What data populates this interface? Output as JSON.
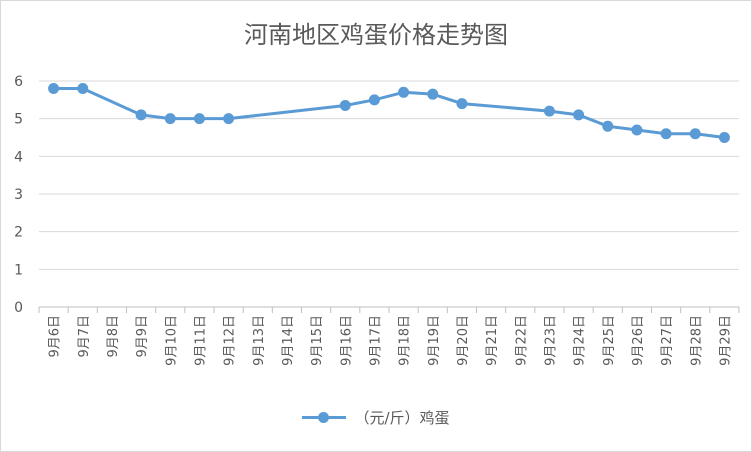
{
  "colors": {
    "series": "#5b9bd5",
    "grid": "#d9d9d9",
    "text": "#595959"
  },
  "chart_data": {
    "type": "line",
    "title": "河南地区鸡蛋价格走势图",
    "xlabel": "",
    "ylabel": "",
    "ylim": [
      0,
      6
    ],
    "yticks": [
      "0",
      "1",
      "2",
      "3",
      "4",
      "5",
      "6"
    ],
    "grid": "horizontal",
    "legend_position": "bottom",
    "categories": [
      "9月6日",
      "9月7日",
      "9月8日",
      "9月9日",
      "9月10日",
      "9月11日",
      "9月12日",
      "9月13日",
      "9月14日",
      "9月15日",
      "9月16日",
      "9月17日",
      "9月18日",
      "9月19日",
      "9月20日",
      "9月21日",
      "9月22日",
      "9月23日",
      "9月24日",
      "9月25日",
      "9月26日",
      "9月27日",
      "9月28日",
      "9月29日"
    ],
    "series": [
      {
        "name": "（元/斤）鸡蛋",
        "values": [
          5.8,
          5.8,
          null,
          5.1,
          5.0,
          5.0,
          5.0,
          null,
          null,
          null,
          5.35,
          5.5,
          5.7,
          5.65,
          5.4,
          null,
          null,
          5.2,
          5.1,
          4.8,
          4.7,
          4.6,
          4.6,
          4.5
        ]
      }
    ]
  }
}
